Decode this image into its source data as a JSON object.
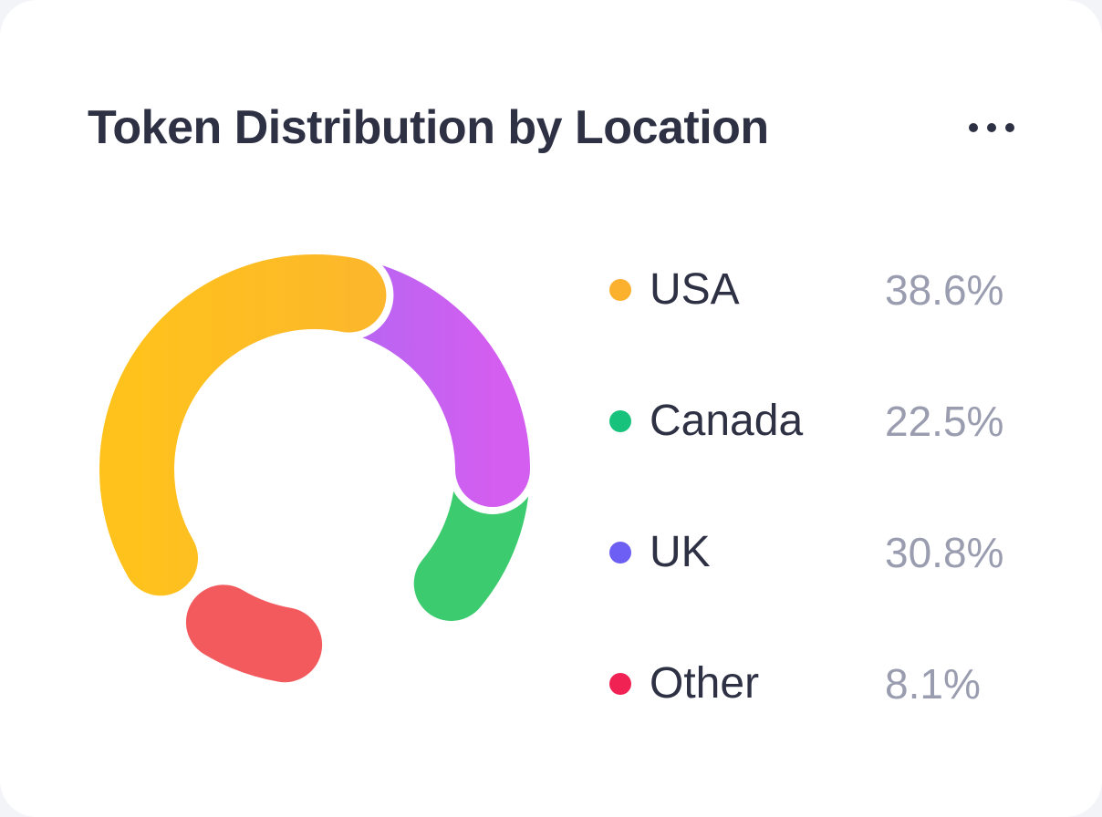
{
  "card": {
    "title": "Token Distribution by Location",
    "menu_icon": "more-horizontal-icon"
  },
  "chart_data": {
    "type": "pie",
    "variant": "donut",
    "title": "Token Distribution by Location",
    "categories": [
      "USA",
      "Canada",
      "UK",
      "Other"
    ],
    "values": [
      38.6,
      22.5,
      30.8,
      8.1
    ],
    "value_labels": [
      "38.6%",
      "22.5%",
      "30.8%",
      "8.1%"
    ],
    "colors": [
      "#fbb12e",
      "#3ccb6e",
      "#9b6cf5",
      "#f25a5e"
    ],
    "legend": {
      "placement": "right",
      "dot_colors": [
        "#fbb12e",
        "#17c27c",
        "#6e5ff4",
        "#ef2253"
      ]
    }
  }
}
